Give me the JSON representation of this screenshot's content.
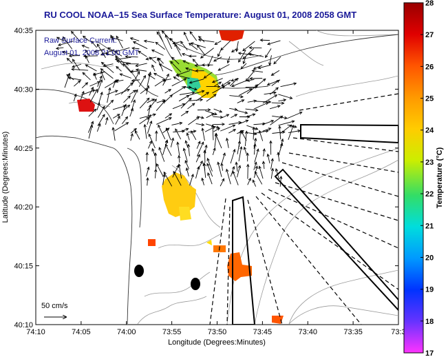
{
  "title": "RU COOL  NOAA–15  Sea Surface Temperature:  August 01, 2008 2058 GMT",
  "map": {
    "legend_line1": "Raw Surface Current:",
    "legend_line2": "August 01, 2008 21:00 GMT",
    "scale_label": "50 cm/s",
    "x_axis_label": "Longitude (Degrees:Minutes)",
    "y_axis_label": "Latitude (Degrees:Minutes)",
    "x_ticks": [
      "74:10",
      "74:05",
      "74:00",
      "73:55",
      "73:50",
      "73:45",
      "73:40",
      "73:35",
      "73:3"
    ],
    "y_ticks": [
      "40:35",
      "40:30",
      "40:25",
      "40:20",
      "40:15",
      "40:10"
    ]
  },
  "colorbar": {
    "label": "Temperature (°C)",
    "ticks": [
      "28",
      "27",
      "26",
      "25",
      "24",
      "23",
      "22",
      "21",
      "20",
      "19",
      "18",
      "17"
    ],
    "min": 17,
    "max": 28
  },
  "sst_patches": [
    {
      "name": "sst-patch-north-green",
      "temp": 23.5
    },
    {
      "name": "sst-patch-north-yellow",
      "temp": 24.5
    },
    {
      "name": "sst-patch-top-red",
      "temp": 27.0
    },
    {
      "name": "sst-patch-west-red",
      "temp": 27.0
    },
    {
      "name": "sst-patch-central-yellow",
      "temp": 24.5
    },
    {
      "name": "sst-patch-south-orange",
      "temp": 25.8
    },
    {
      "name": "sst-patch-small-orange",
      "temp": 25.8
    },
    {
      "name": "sst-patch-bottom-orange",
      "temp": 26.0
    },
    {
      "name": "sst-patch-west-small",
      "temp": 26.5
    }
  ],
  "colors": {
    "title": "#1a1a99",
    "coast": "#000000",
    "bathymetry": "#888888"
  }
}
